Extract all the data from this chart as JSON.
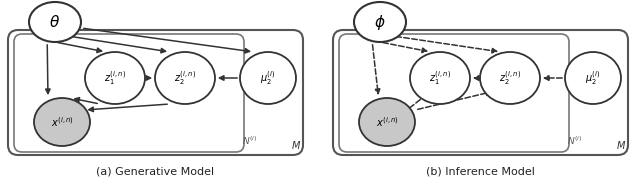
{
  "fig_width": 6.4,
  "fig_height": 1.86,
  "dpi": 100,
  "background": "#ffffff",
  "node_color_white": "#ffffff",
  "node_color_gray": "#c8c8c8",
  "node_edge_color": "#333333",
  "box_color": "#555555",
  "text_color": "#222222",
  "caption_left": "(a) Generative Model",
  "caption_right": "(b) Inference Model"
}
